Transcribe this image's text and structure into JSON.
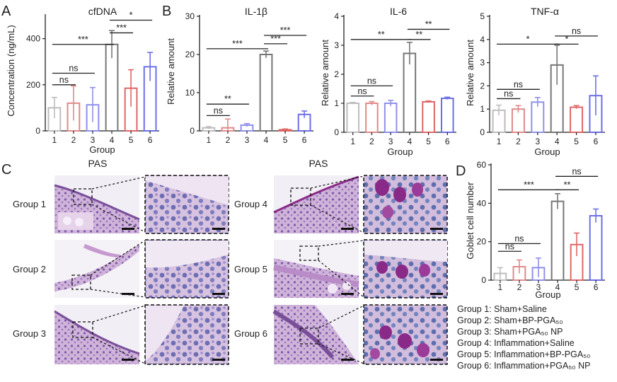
{
  "panel_labels": {
    "a": "A",
    "b": "B",
    "c": "C",
    "d": "D"
  },
  "colors": {
    "g1": "#bdbdbd",
    "g2": "#e08a8a",
    "g3": "#8f91e8",
    "g4": "#777777",
    "g5": "#e06767",
    "g6": "#6d6fe8",
    "tissue_light": "#ddc8e2",
    "tissue_dark": "#9a66b4",
    "goblet": "#8a2a88"
  },
  "chart_data": [
    {
      "id": "cfdna",
      "type": "bar",
      "title": "cfDNA",
      "xlabel": "Group",
      "ylabel": "Concentration (ng/mL)",
      "categories": [
        "1",
        "2",
        "3",
        "4",
        "5",
        "6"
      ],
      "values": [
        100,
        120,
        113,
        375,
        185,
        278
      ],
      "errors": [
        45,
        75,
        75,
        60,
        80,
        62
      ],
      "ylim": [
        0,
        500
      ],
      "yticks": [
        "0",
        "200",
        "400"
      ],
      "ytick_values": [
        0,
        200,
        400
      ],
      "brackets": [
        {
          "from": "1",
          "to": "2",
          "y": 200,
          "label": "ns"
        },
        {
          "from": "1",
          "to": "3",
          "y": 250,
          "label": "ns"
        },
        {
          "from": "1",
          "to": "4",
          "y": 375,
          "label": "***"
        },
        {
          "from": "4",
          "to": "5",
          "y": 425,
          "label": "***"
        },
        {
          "from": "4",
          "to": "6",
          "y": 480,
          "label": "*"
        }
      ]
    },
    {
      "id": "il1b",
      "type": "bar",
      "title": "IL-1β",
      "xlabel": "",
      "ylabel": "Relative amount",
      "categories": [
        "1",
        "2",
        "3",
        "4",
        "5",
        "6"
      ],
      "values": [
        0.8,
        0.8,
        1.5,
        20.0,
        0.3,
        4.3
      ],
      "errors": [
        0.3,
        2.3,
        0.4,
        0.9,
        0.2,
        0.9
      ],
      "ylim": [
        0,
        30
      ],
      "yticks": [
        "0",
        "10",
        "20",
        "30"
      ],
      "ytick_values": [
        0,
        10,
        20,
        30
      ],
      "brackets": [
        {
          "from": "1",
          "to": "2",
          "y": 4.0,
          "label": "ns"
        },
        {
          "from": "1",
          "to": "3",
          "y": 7.0,
          "label": "**"
        },
        {
          "from": "1",
          "to": "4",
          "y": 21.5,
          "label": "***"
        },
        {
          "from": "4",
          "to": "5",
          "y": 22.8,
          "label": "***"
        },
        {
          "from": "4",
          "to": "6",
          "y": 25.0,
          "label": "***"
        }
      ]
    },
    {
      "id": "il6",
      "type": "bar",
      "title": "IL-6",
      "xlabel": "Group",
      "ylabel": "Relative amount",
      "categories": [
        "1",
        "2",
        "3",
        "4",
        "5",
        "6"
      ],
      "values": [
        1.0,
        1.0,
        1.0,
        2.72,
        1.05,
        1.17
      ],
      "errors": [
        0.03,
        0.06,
        0.1,
        0.38,
        0.03,
        0.04
      ],
      "ylim": [
        0,
        4
      ],
      "yticks": [
        "0",
        "1",
        "2",
        "3",
        "4"
      ],
      "ytick_values": [
        0,
        1,
        2,
        3,
        4
      ],
      "brackets": [
        {
          "from": "1",
          "to": "2",
          "y": 1.25,
          "label": "ns"
        },
        {
          "from": "1",
          "to": "3",
          "y": 1.6,
          "label": "ns"
        },
        {
          "from": "1",
          "to": "4",
          "y": 3.2,
          "label": "**"
        },
        {
          "from": "4",
          "to": "5",
          "y": 3.2,
          "label": "**"
        },
        {
          "from": "4",
          "to": "6",
          "y": 3.55,
          "label": "**"
        }
      ]
    },
    {
      "id": "tnfa",
      "type": "bar",
      "title": "TNF-α",
      "xlabel": "Group",
      "ylabel": "Relative amount",
      "categories": [
        "1",
        "2",
        "3",
        "4",
        "5",
        "6"
      ],
      "values": [
        0.95,
        1.0,
        1.3,
        2.9,
        1.08,
        1.58
      ],
      "errors": [
        0.22,
        0.15,
        0.2,
        0.85,
        0.07,
        0.85
      ],
      "ylim": [
        0,
        5
      ],
      "yticks": [
        "0",
        "1",
        "2",
        "3",
        "4",
        "5"
      ],
      "ytick_values": [
        0,
        1,
        2,
        3,
        4,
        5
      ],
      "brackets": [
        {
          "from": "1",
          "to": "2",
          "y": 1.45,
          "label": "ns"
        },
        {
          "from": "1",
          "to": "3",
          "y": 1.85,
          "label": "ns"
        },
        {
          "from": "1",
          "to": "4",
          "y": 3.8,
          "label": "*"
        },
        {
          "from": "4",
          "to": "5",
          "y": 3.8,
          "label": "*"
        },
        {
          "from": "4",
          "to": "6",
          "y": 4.15,
          "label": "ns"
        }
      ]
    },
    {
      "id": "goblet",
      "type": "bar",
      "title": "",
      "xlabel": "Group",
      "ylabel": "Goblet cell number",
      "categories": [
        "1",
        "2",
        "3",
        "4",
        "5",
        "6"
      ],
      "values": [
        3.5,
        7,
        6.5,
        41,
        18.5,
        33.5
      ],
      "errors": [
        3,
        3.5,
        5,
        4,
        6,
        3.5
      ],
      "ylim": [
        0,
        60
      ],
      "yticks": [
        "0",
        "20",
        "40",
        "60"
      ],
      "ytick_values": [
        0,
        20,
        40,
        60
      ],
      "brackets": [
        {
          "from": "1",
          "to": "2",
          "y": 15,
          "label": "ns"
        },
        {
          "from": "1",
          "to": "3",
          "y": 19,
          "label": "ns"
        },
        {
          "from": "1",
          "to": "4",
          "y": 47,
          "label": "***"
        },
        {
          "from": "4",
          "to": "5",
          "y": 47,
          "label": "**"
        },
        {
          "from": "4",
          "to": "6",
          "y": 54,
          "label": "ns"
        }
      ]
    }
  ],
  "histology": {
    "stain_titles": [
      "PAS",
      "PAS"
    ],
    "groups": [
      "Group 1",
      "Group 2",
      "Group 3",
      "Group 4",
      "Group 5",
      "Group 6"
    ]
  },
  "legend": [
    "Group 1: Sham+Saline",
    "Group 2: Sham+BP-PGA₅₀",
    "Group 3: Sham+PGA₅₀ NP",
    "Group 4: Inflammation+Saline",
    "Group 5: Inflammation+BP-PGA₅₀",
    "Group 6: Inflammation+PGA₅₀ NP"
  ]
}
